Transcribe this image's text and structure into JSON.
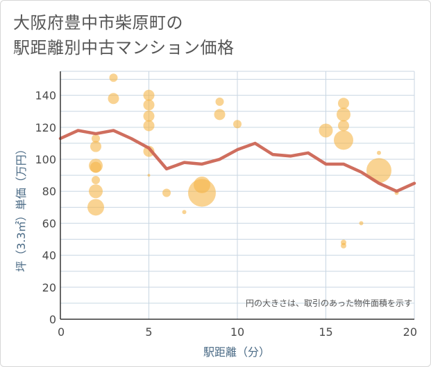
{
  "title_lines": [
    "大阪府豊中市柴原町の",
    "駅距離別中古マンション価格"
  ],
  "chart_data": {
    "type": "scatter",
    "title": "大阪府豊中市柴原町の駅距離別中古マンション価格",
    "xlabel": "駅距離（分）",
    "ylabel": "坪（3.3㎡）単価（万円）",
    "xlim": [
      0,
      20
    ],
    "ylim": [
      0,
      155
    ],
    "x_ticks": [
      0,
      5,
      10,
      15,
      20
    ],
    "y_ticks": [
      0,
      20,
      40,
      60,
      80,
      100,
      120,
      140
    ],
    "grid": true,
    "note": "円の大きさは、取引のあった物件面積を示す",
    "colors": {
      "bubble": "#f5b54a",
      "line": "#cc6655",
      "grid": "#c8d6e2",
      "axis": "#333333"
    },
    "points": [
      {
        "x": 2,
        "y": 70,
        "size": 12
      },
      {
        "x": 2,
        "y": 80,
        "size": 10
      },
      {
        "x": 2,
        "y": 87,
        "size": 6
      },
      {
        "x": 2,
        "y": 95,
        "size": 8
      },
      {
        "x": 2,
        "y": 96,
        "size": 10
      },
      {
        "x": 2,
        "y": 108,
        "size": 8
      },
      {
        "x": 2,
        "y": 113,
        "size": 6
      },
      {
        "x": 3,
        "y": 138,
        "size": 8
      },
      {
        "x": 3,
        "y": 151,
        "size": 6
      },
      {
        "x": 5,
        "y": 90,
        "size": 2
      },
      {
        "x": 5,
        "y": 105,
        "size": 8
      },
      {
        "x": 5,
        "y": 121,
        "size": 8
      },
      {
        "x": 5,
        "y": 127,
        "size": 8
      },
      {
        "x": 5,
        "y": 134,
        "size": 8
      },
      {
        "x": 5,
        "y": 140,
        "size": 8
      },
      {
        "x": 6,
        "y": 79,
        "size": 6
      },
      {
        "x": 7,
        "y": 67,
        "size": 3
      },
      {
        "x": 8,
        "y": 79,
        "size": 20
      },
      {
        "x": 8,
        "y": 84,
        "size": 12
      },
      {
        "x": 9,
        "y": 128,
        "size": 8
      },
      {
        "x": 9,
        "y": 136,
        "size": 6
      },
      {
        "x": 10,
        "y": 122,
        "size": 6
      },
      {
        "x": 15,
        "y": 118,
        "size": 10
      },
      {
        "x": 16,
        "y": 46,
        "size": 4
      },
      {
        "x": 16,
        "y": 48,
        "size": 4
      },
      {
        "x": 16,
        "y": 112,
        "size": 14
      },
      {
        "x": 16,
        "y": 121,
        "size": 8
      },
      {
        "x": 16,
        "y": 128,
        "size": 10
      },
      {
        "x": 16,
        "y": 135,
        "size": 8
      },
      {
        "x": 17,
        "y": 60,
        "size": 3
      },
      {
        "x": 18,
        "y": 93,
        "size": 18
      },
      {
        "x": 18,
        "y": 104,
        "size": 3
      },
      {
        "x": 19,
        "y": 79,
        "size": 3
      }
    ],
    "line": {
      "x": [
        0,
        1,
        2,
        3,
        4,
        5,
        6,
        7,
        8,
        9,
        10,
        11,
        12,
        13,
        14,
        15,
        16,
        17,
        18,
        19,
        20
      ],
      "y": [
        113,
        118,
        116,
        118,
        113,
        107,
        94,
        98,
        97,
        100,
        106,
        110,
        103,
        102,
        104,
        97,
        97,
        92,
        85,
        80,
        85
      ]
    }
  }
}
